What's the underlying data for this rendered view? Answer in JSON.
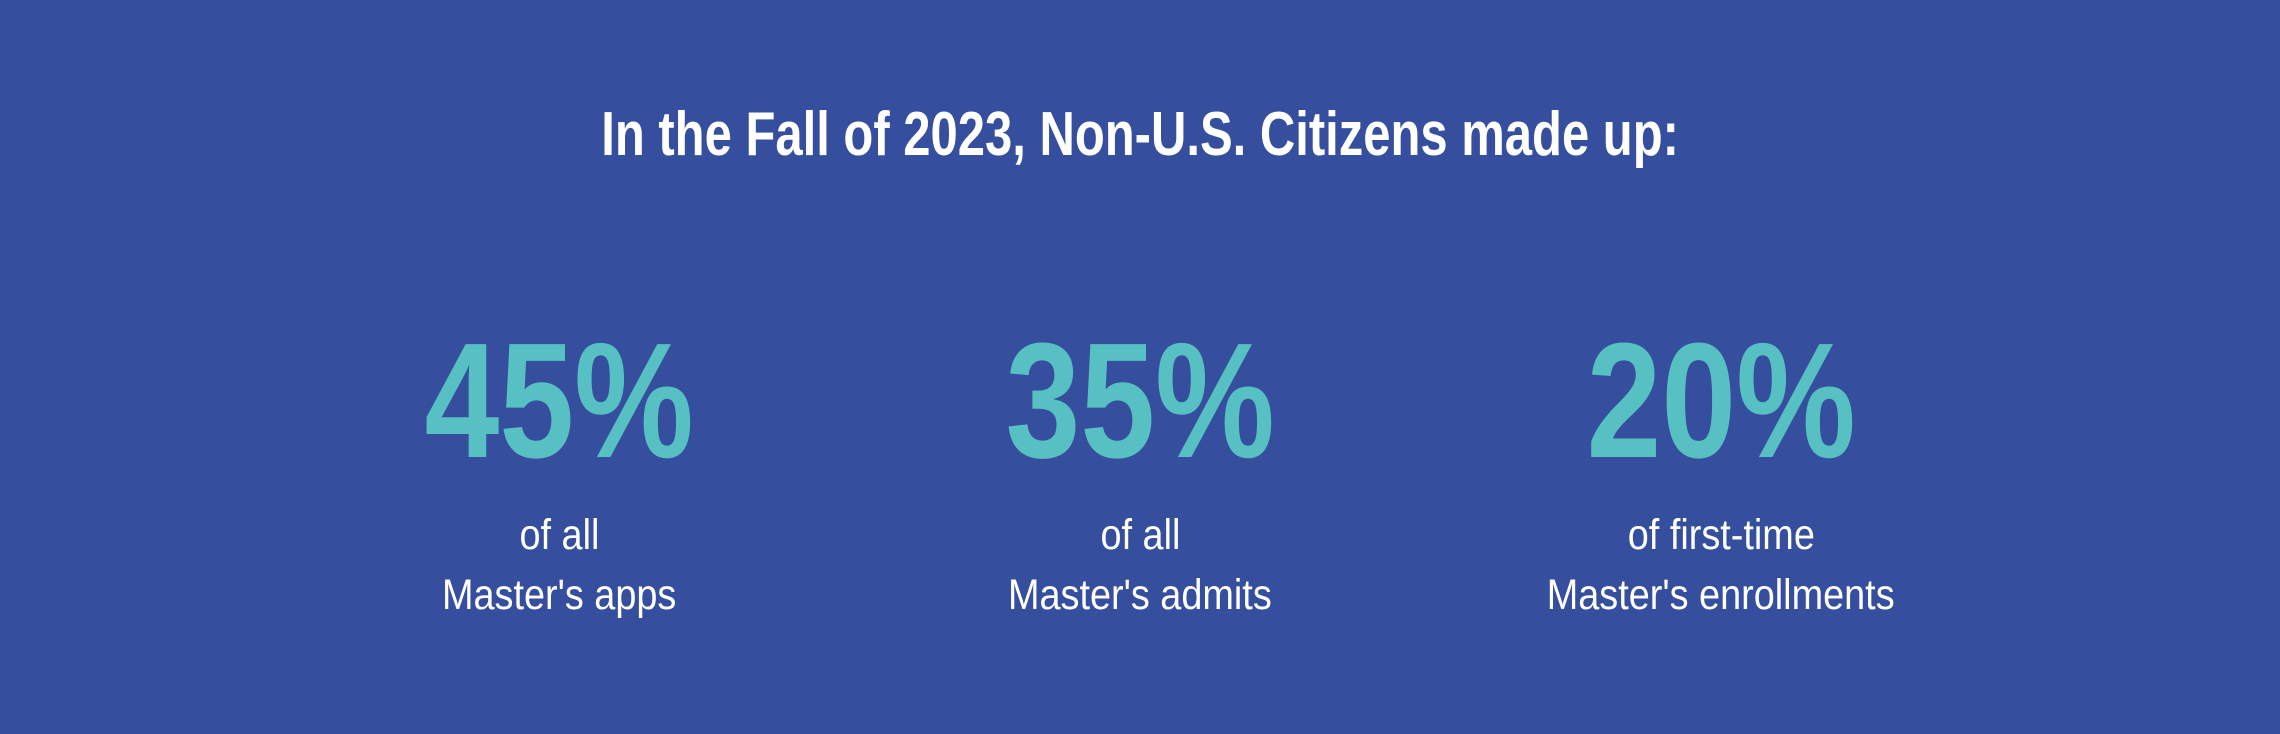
{
  "chart_data": {
    "type": "table",
    "title": "In the Fall of 2023, Non-U.S. Citizens made up:",
    "categories": [
      "of all Master's apps",
      "of all Master's admits",
      "of first-time Master's enrollments"
    ],
    "values": [
      45,
      35,
      20
    ],
    "value_unit": "%",
    "layout": "three stat callouts in a horizontal row, centered under title"
  },
  "header": {
    "title": "In the Fall of 2023, Non-U.S. Citizens made up:"
  },
  "stats": [
    {
      "value": "45%",
      "label_line1": "of all",
      "label_line2": "Master's apps"
    },
    {
      "value": "35%",
      "label_line1": "of all",
      "label_line2": "Master's admits"
    },
    {
      "value": "20%",
      "label_line1": "of first-time",
      "label_line2": "Master's enrollments"
    }
  ],
  "colors": {
    "background": "#354E9D",
    "accent": "#56C0C2",
    "text": "#FFFFFF"
  }
}
